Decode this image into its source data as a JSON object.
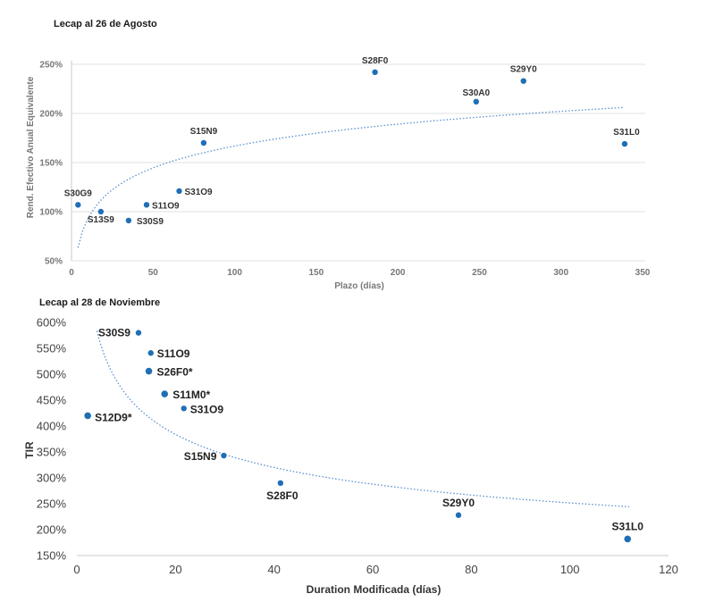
{
  "colors": {
    "point": "#1f6fb6",
    "trend": "#5b8fd0",
    "grid": "#e2e2e2"
  },
  "chart_data": [
    {
      "type": "scatter",
      "title": "Lecap al 26 de Agosto",
      "xlabel": "Plazo (días)",
      "ylabel": "Rend. Efectivo Anual Equivalente",
      "xlim": [
        0,
        350
      ],
      "ylim": [
        50,
        250
      ],
      "xticks": [
        0,
        50,
        100,
        150,
        200,
        250,
        300,
        350
      ],
      "xtick_labels": [
        "0",
        "50",
        "100",
        "150",
        "200",
        "250",
        "300",
        "350"
      ],
      "yticks": [
        50,
        100,
        150,
        200,
        250
      ],
      "ytick_labels": [
        "50%",
        "100%",
        "150%",
        "200%",
        "250%"
      ],
      "grid": true,
      "points": [
        {
          "label": "S30G9",
          "x": 4,
          "y": 107
        },
        {
          "label": "S13S9",
          "x": 18,
          "y": 100
        },
        {
          "label": "S30S9",
          "x": 35,
          "y": 91
        },
        {
          "label": "S11O9",
          "x": 46,
          "y": 107
        },
        {
          "label": "S31O9",
          "x": 66,
          "y": 121
        },
        {
          "label": "S15N9",
          "x": 81,
          "y": 170
        },
        {
          "label": "S28F0",
          "x": 186,
          "y": 242
        },
        {
          "label": "S30A0",
          "x": 248,
          "y": 212
        },
        {
          "label": "S29Y0",
          "x": 277,
          "y": 233
        },
        {
          "label": "S31L0",
          "x": 339,
          "y": 169
        }
      ],
      "trendline": {
        "type": "logarithmic",
        "x_range": [
          4,
          339
        ]
      }
    },
    {
      "type": "scatter",
      "title": "Lecap al 28 de Noviembre",
      "xlabel": "Duration Modificada (días)",
      "ylabel": "TIR",
      "xlim": [
        0,
        120
      ],
      "ylim": [
        150,
        600
      ],
      "xticks": [
        0,
        20,
        40,
        60,
        80,
        100,
        120
      ],
      "xtick_labels": [
        "0",
        "20",
        "40",
        "60",
        "80",
        "100",
        "120"
      ],
      "yticks": [
        150,
        200,
        250,
        300,
        350,
        400,
        450,
        500,
        550,
        600
      ],
      "ytick_labels": [
        "150%",
        "200%",
        "250%",
        "300%",
        "350%",
        "400%",
        "450%",
        "500%",
        "550%",
        "600%"
      ],
      "grid": false,
      "points": [
        {
          "label": "S30S9",
          "x": 12.5,
          "y": 580
        },
        {
          "label": "S11O9",
          "x": 15,
          "y": 541
        },
        {
          "label": "S26F0*",
          "x": 14.6,
          "y": 506
        },
        {
          "label": "S11M0*",
          "x": 17.8,
          "y": 462
        },
        {
          "label": "S31O9",
          "x": 21.7,
          "y": 434
        },
        {
          "label": "S12D9*",
          "x": 2.2,
          "y": 420
        },
        {
          "label": "S15N9",
          "x": 29.8,
          "y": 343
        },
        {
          "label": "S28F0",
          "x": 41.3,
          "y": 290
        },
        {
          "label": "S29Y0",
          "x": 77.4,
          "y": 228
        },
        {
          "label": "S31L0",
          "x": 111.7,
          "y": 182
        }
      ],
      "trendline": {
        "type": "power",
        "x_range": [
          2,
          112
        ]
      }
    }
  ]
}
